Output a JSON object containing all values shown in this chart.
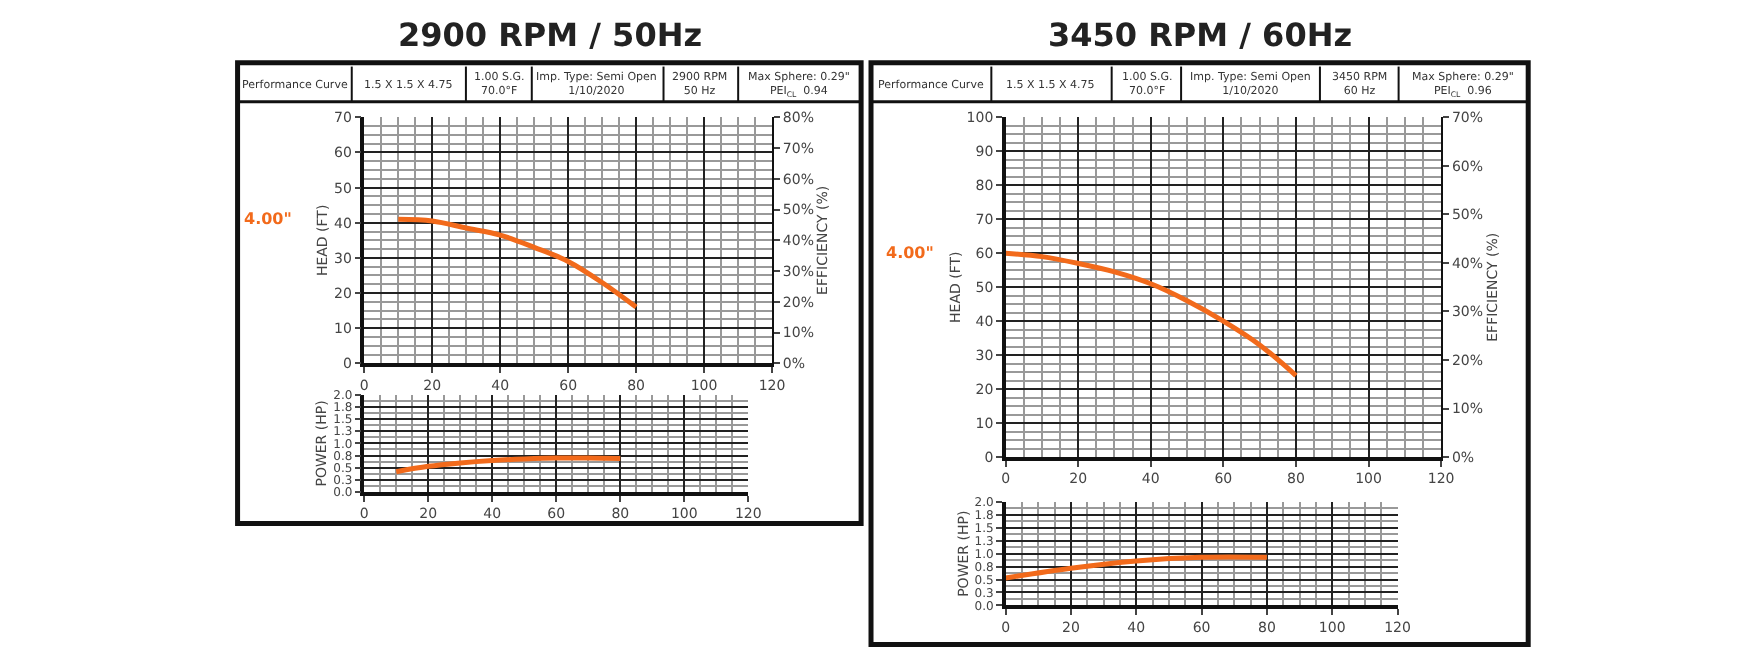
{
  "chart_data": [
    {
      "type": "line",
      "title": "2900 RPM / 50Hz",
      "ylabel": "HEAD (FT)",
      "y2label": "EFFICIENCY (%)",
      "annotations": [
        "Performance Curve",
        "1.5 X 1.5 X 4.75",
        "1.00 S.G.\n70.0°F",
        "Imp. Type: Semi Open\n1/10/2020",
        "2900 RPM\n50 Hz",
        "Max Sphere: 0.29\"\nPEI$_{CL}$  0.94",
        "4.00\""
      ],
      "x": [
        10,
        20,
        30,
        40,
        50,
        60,
        70,
        80
      ],
      "series": [
        {
          "color": "#f26a1b",
          "values": [
            41,
            40.5,
            38.5,
            36.5,
            33,
            29,
            23,
            16
          ]
        }
      ],
      "xlim": [
        0,
        120
      ],
      "xticks": [
        0,
        20,
        40,
        60,
        80,
        100,
        120
      ],
      "ylim": [
        0,
        70
      ],
      "yticks": [
        0,
        10,
        20,
        30,
        40,
        50,
        60,
        70
      ],
      "y2lim": [
        0,
        80
      ],
      "y2ticks": [
        {
          "value": 0,
          "label": "0%"
        },
        {
          "value": 10,
          "label": "10%"
        },
        {
          "value": 20,
          "label": "20%"
        },
        {
          "value": 30,
          "label": "30%"
        },
        {
          "value": 40,
          "label": "40%"
        },
        {
          "value": 50,
          "label": "50%"
        },
        {
          "value": 60,
          "label": "60%"
        },
        {
          "value": 70,
          "label": "70%"
        },
        {
          "value": 80,
          "label": "80%"
        }
      ],
      "grid": true,
      "marker": "none",
      "line_style": "solid"
    },
    {
      "type": "line",
      "ylabel": "POWER (HP)",
      "x": [
        10,
        20,
        30,
        40,
        50,
        60,
        70,
        80
      ],
      "series": [
        {
          "color": "#f26a1b",
          "values": [
            0.42,
            0.53,
            0.6,
            0.65,
            0.68,
            0.7,
            0.7,
            0.69
          ]
        }
      ],
      "xlim": [
        0,
        120
      ],
      "xticks": [
        0,
        20,
        40,
        60,
        80,
        100,
        120
      ],
      "ylim": [
        0,
        2
      ],
      "yticks": [
        {
          "value": 0,
          "label": "0.0"
        },
        {
          "value": 0.25,
          "label": "0.3"
        },
        {
          "value": 0.5,
          "label": "0.5"
        },
        {
          "value": 0.75,
          "label": "0.8"
        },
        {
          "value": 1,
          "label": "1.0"
        },
        {
          "value": 1.25,
          "label": "1.3"
        },
        {
          "value": 1.5,
          "label": "1.5"
        },
        {
          "value": 1.75,
          "label": "1.8"
        },
        {
          "value": 2,
          "label": "2.0"
        }
      ],
      "grid": true,
      "marker": "none",
      "line_style": "solid"
    },
    {
      "type": "line",
      "title": "3450 RPM / 60Hz",
      "ylabel": "HEAD (FT)",
      "y2label": "EFFICIENCY (%)",
      "annotations": [
        "Performance Curve",
        "1.5 X 1.5 X 4.75",
        "1.00 S.G.\n70.0°F",
        "Imp. Type: Semi Open\n1/10/2020",
        "3450 RPM\n60 Hz",
        "Max Sphere: 0.29\"\nPEI$_{CL}$  0.96",
        "4.00\""
      ],
      "x": [
        0,
        10,
        20,
        30,
        40,
        50,
        60,
        70,
        80
      ],
      "series": [
        {
          "color": "#f26a1b",
          "values": [
            60,
            59,
            57,
            54.5,
            51,
            46,
            40,
            33,
            24
          ]
        }
      ],
      "xlim": [
        0,
        120
      ],
      "xticks": [
        0,
        20,
        40,
        60,
        80,
        100,
        120
      ],
      "ylim": [
        0,
        100
      ],
      "yticks": [
        0,
        10,
        20,
        30,
        40,
        50,
        60,
        70,
        80,
        90,
        100
      ],
      "y2lim": [
        0,
        70
      ],
      "y2ticks": [
        {
          "value": 0,
          "label": "0%"
        },
        {
          "value": 10,
          "label": "10%"
        },
        {
          "value": 20,
          "label": "20%"
        },
        {
          "value": 30,
          "label": "30%"
        },
        {
          "value": 40,
          "label": "40%"
        },
        {
          "value": 50,
          "label": "50%"
        },
        {
          "value": 60,
          "label": "60%"
        },
        {
          "value": 70,
          "label": "70%"
        }
      ],
      "grid": true,
      "marker": "none",
      "line_style": "solid"
    },
    {
      "type": "line",
      "ylabel": "POWER (HP)",
      "x": [
        0,
        20,
        40,
        60,
        80
      ],
      "series": [
        {
          "color": "#f26a1b",
          "values": [
            0.53,
            0.72,
            0.86,
            0.93,
            0.93
          ]
        }
      ],
      "xlim": [
        0,
        120
      ],
      "xticks": [
        0,
        20,
        40,
        60,
        80,
        100,
        120
      ],
      "ylim": [
        0,
        2
      ],
      "yticks": [
        {
          "value": 0,
          "label": "0.0"
        },
        {
          "value": 0.25,
          "label": "0.3"
        },
        {
          "value": 0.5,
          "label": "0.5"
        },
        {
          "value": 0.75,
          "label": "0.8"
        },
        {
          "value": 1,
          "label": "1.0"
        },
        {
          "value": 1.25,
          "label": "1.3"
        },
        {
          "value": 1.5,
          "label": "1.5"
        },
        {
          "value": 1.75,
          "label": "1.8"
        },
        {
          "value": 2,
          "label": "2.0"
        }
      ],
      "grid": true,
      "marker": "none",
      "line_style": "solid"
    }
  ]
}
